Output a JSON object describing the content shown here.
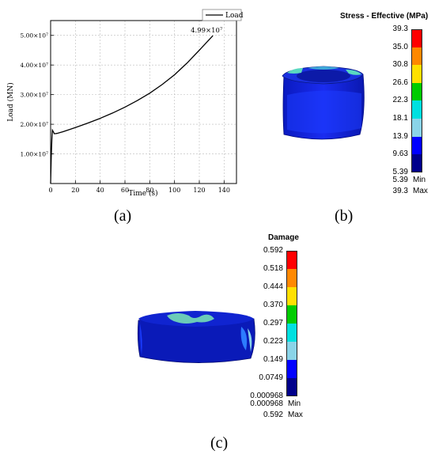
{
  "chart_data": {
    "type": "line",
    "xlabel": "Time (s)",
    "ylabel": "Load (MN)",
    "xlim": [
      0,
      150
    ],
    "ylim": [
      0,
      55000000
    ],
    "xticks": [
      "0",
      "20",
      "40",
      "60",
      "80",
      "100",
      "120",
      "140"
    ],
    "yticks": [
      {
        "value": 10000000,
        "label": "1.00×10⁷"
      },
      {
        "value": 20000000,
        "label": "2.00×10⁷"
      },
      {
        "value": 30000000,
        "label": "3.00×10⁷"
      },
      {
        "value": 40000000,
        "label": "4.00×10⁷"
      },
      {
        "value": 50000000,
        "label": "5.00×10⁷"
      }
    ],
    "grid": true,
    "legend_position": "top-right",
    "series": [
      {
        "name": "Load",
        "color": "#000000",
        "x": [
          0,
          0.5,
          1,
          1.5,
          2.2,
          3,
          5,
          10,
          20,
          30,
          40,
          50,
          60,
          70,
          80,
          90,
          100,
          110,
          120,
          131
        ],
        "y": [
          0,
          9000000,
          15000000,
          18000000,
          17500000,
          16800000,
          16900000,
          17500000,
          18900000,
          20400000,
          22000000,
          23800000,
          25800000,
          28000000,
          30500000,
          33400000,
          36700000,
          40600000,
          45000000,
          49900000
        ]
      }
    ],
    "annotation": {
      "text": "4.99×10⁷",
      "x": 131,
      "y": 49900000
    }
  },
  "panels": {
    "a": "(a)",
    "b": "(b)",
    "c": "(c)"
  },
  "stress_legend": {
    "title": "Stress - Effective (MPa)",
    "labels": [
      "39.3",
      "35.0",
      "30.8",
      "26.6",
      "22.3",
      "18.1",
      "13.9",
      "9.63",
      "5.39"
    ],
    "colors": [
      "#ff0000",
      "#ff8800",
      "#ffe000",
      "#00cc00",
      "#00e0e0",
      "#8ad4e8",
      "#0000ff",
      "#00008b"
    ],
    "min_value": "5.39",
    "min_label": "Min",
    "max_value": "39.3",
    "max_label": "Max"
  },
  "damage_legend": {
    "title": "Damage",
    "labels": [
      "0.592",
      "0.518",
      "0.444",
      "0.370",
      "0.297",
      "0.223",
      "0.149",
      "0.0749",
      "0.000968"
    ],
    "colors": [
      "#ff0000",
      "#ff8800",
      "#ffe000",
      "#00cc00",
      "#00e0e0",
      "#8ad4e8",
      "#0000ff",
      "#00008b"
    ],
    "min_value": "0.000968",
    "min_label": "Min",
    "max_value": "0.592",
    "max_label": "Max"
  }
}
